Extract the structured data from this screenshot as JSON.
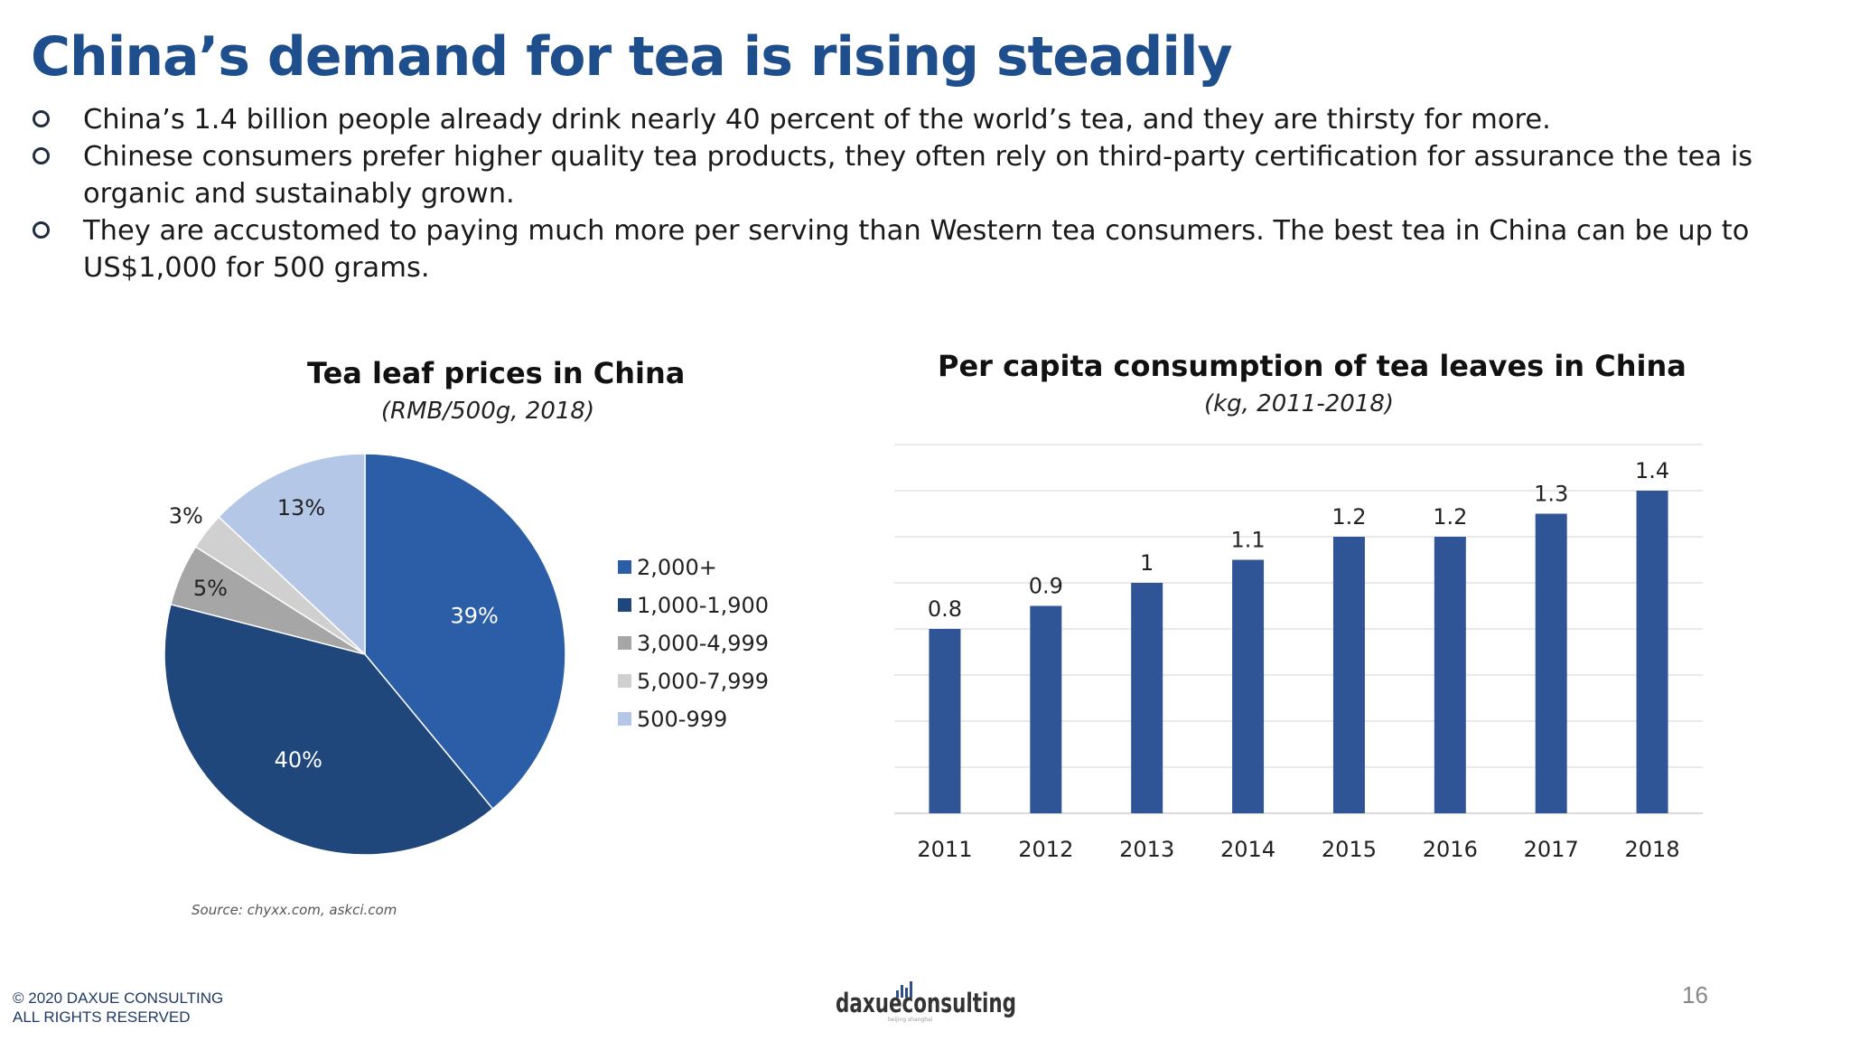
{
  "slide": {
    "title": "China’s demand for tea is rising steadily",
    "bullets": [
      "China’s 1.4 billion people already drink nearly 40 percent of the world’s tea, and they are thirsty for more.",
      "Chinese consumers prefer higher quality tea products, they often rely on third-party certification for assurance the tea is organic and sustainably grown.",
      "They are accustomed to paying much more per serving than Western tea consumers. The best tea in China can be up to US$1,000 for 500 grams."
    ],
    "source": "Source: chyxx.com, askci.com",
    "copyright_line1": "© 2020 DAXUE CONSULTING",
    "copyright_line2": "ALL RIGHTS RESERVED",
    "logo_text": "daxueconsulting",
    "logo_tagline": "beijing shanghai",
    "page_number": "16"
  },
  "chart_data": [
    {
      "type": "pie",
      "title": "Tea leaf prices in China",
      "subtitle": "(RMB/500g, 2018)",
      "categories": [
        "2,000+",
        "1,000-1,900",
        "3,000-4,999",
        "5,000-7,999",
        "500-999"
      ],
      "values": [
        39,
        40,
        5,
        3,
        13
      ],
      "labels": [
        "39%",
        "40%",
        "5%",
        "3%",
        "13%"
      ],
      "colors": [
        "#2b5ea6",
        "#1f477c",
        "#a6a6a6",
        "#d0d0d0",
        "#b4c7e7"
      ],
      "label_colors": [
        "#ffffff",
        "#ffffff",
        "#222222",
        "#222222",
        "#222222"
      ],
      "legend": "right"
    },
    {
      "type": "bar",
      "title": "Per capita consumption of tea leaves in China",
      "subtitle": "(kg, 2011-2018)",
      "categories": [
        "2011",
        "2012",
        "2013",
        "2014",
        "2015",
        "2016",
        "2017",
        "2018"
      ],
      "values": [
        0.8,
        0.9,
        1,
        1.1,
        1.2,
        1.2,
        1.3,
        1.4
      ],
      "ylim": [
        0,
        1.6
      ],
      "grid": true,
      "color": "#2f5597"
    }
  ]
}
